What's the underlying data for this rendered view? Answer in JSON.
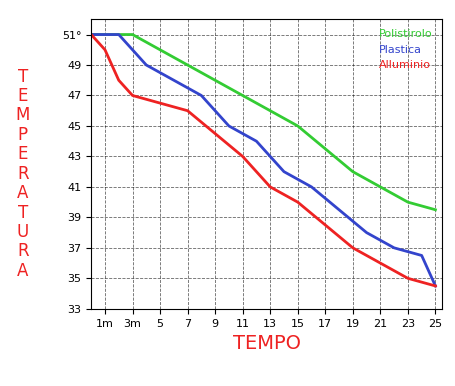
{
  "chart_data": {
    "type": "line",
    "x_label": "TEMPO",
    "y_label": "TEMPERATURA",
    "xlim": [
      0,
      25.5
    ],
    "ylim": [
      33,
      52
    ],
    "xticks": [
      {
        "value": 1,
        "label": "1m"
      },
      {
        "value": 3,
        "label": "3m"
      },
      5,
      7,
      9,
      11,
      13,
      15,
      17,
      19,
      21,
      23,
      25
    ],
    "yticks": [
      33,
      35,
      37,
      39,
      41,
      43,
      45,
      47,
      49,
      {
        "value": 51,
        "label": "51°"
      }
    ],
    "grid": true,
    "legend": "upper right",
    "series": [
      {
        "name": "Polistirolo",
        "color": "#33cc33",
        "x": [
          0,
          3,
          5,
          7,
          9,
          11,
          13,
          15,
          17,
          19,
          21,
          23,
          25
        ],
        "values": [
          51,
          51,
          50,
          49,
          48,
          47,
          46,
          45,
          43.5,
          42,
          41,
          40,
          39.5
        ]
      },
      {
        "name": "Plastica",
        "color": "#3344cc",
        "x": [
          0,
          2,
          4,
          6,
          8,
          10,
          12,
          14,
          16,
          18,
          20,
          22,
          24,
          25
        ],
        "values": [
          51,
          51,
          49,
          48,
          47,
          45,
          44,
          42,
          41,
          39.5,
          38,
          37,
          36.5,
          34.5
        ]
      },
      {
        "name": "Alluminio",
        "color": "#ee2222",
        "x": [
          0,
          1,
          2,
          3,
          5,
          7,
          9,
          11,
          13,
          15,
          17,
          19,
          21,
          23,
          25
        ],
        "values": [
          51,
          50,
          48,
          47,
          46.5,
          46,
          44.5,
          43,
          41,
          40,
          38.5,
          37,
          36,
          35,
          34.5
        ]
      }
    ]
  }
}
